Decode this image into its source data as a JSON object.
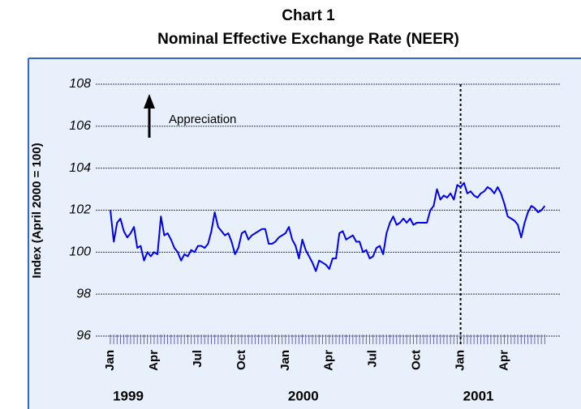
{
  "chart_data": {
    "type": "line",
    "title": "Chart 1",
    "subtitle": "Nominal Effective Exchange Rate (NEER)",
    "y_label": "Index (April 2000 = 100)",
    "annotation": "Appreciation",
    "year_labels": [
      "1999",
      "2000",
      "2001"
    ],
    "categories": [
      "Jan",
      null,
      null,
      null,
      null,
      null,
      null,
      null,
      null,
      null,
      null,
      null,
      null,
      "Apr",
      null,
      null,
      null,
      null,
      null,
      null,
      null,
      null,
      null,
      null,
      null,
      null,
      "Jul",
      null,
      null,
      null,
      null,
      null,
      null,
      null,
      null,
      null,
      null,
      null,
      null,
      "Oct",
      null,
      null,
      null,
      null,
      null,
      null,
      null,
      null,
      null,
      null,
      null,
      null,
      "Jan",
      null,
      null,
      null,
      null,
      null,
      null,
      null,
      null,
      null,
      null,
      null,
      null,
      "Apr",
      null,
      null,
      null,
      null,
      null,
      null,
      null,
      null,
      null,
      null,
      null,
      null,
      "Jul",
      null,
      null,
      null,
      null,
      null,
      null,
      null,
      null,
      null,
      null,
      null,
      null,
      "Oct",
      null,
      null,
      null,
      null,
      null,
      null,
      null,
      null,
      null,
      null,
      null,
      null,
      "Jan",
      null,
      null,
      null,
      null,
      null,
      null,
      null,
      null,
      null,
      null,
      null,
      null,
      "Apr",
      null,
      null,
      null,
      null,
      null,
      null,
      null,
      null,
      null,
      null,
      null,
      null
    ],
    "series": [
      {
        "name": "NEER",
        "color": "#0000ee",
        "values": [
          102.0,
          100.5,
          101.4,
          101.6,
          101.0,
          100.7,
          100.9,
          101.2,
          100.2,
          100.3,
          99.6,
          100.0,
          99.8,
          100.0,
          99.9,
          101.7,
          100.8,
          100.9,
          100.6,
          100.2,
          100.0,
          99.6,
          99.9,
          99.8,
          100.1,
          100.0,
          100.3,
          100.3,
          100.2,
          100.4,
          101.0,
          101.9,
          101.2,
          101.0,
          100.8,
          100.9,
          100.5,
          99.9,
          100.2,
          100.9,
          101.0,
          100.6,
          100.8,
          100.9,
          101.0,
          101.1,
          101.1,
          100.4,
          100.4,
          100.5,
          100.7,
          100.8,
          100.9,
          101.2,
          100.6,
          100.3,
          99.7,
          100.6,
          100.1,
          99.8,
          99.5,
          99.1,
          99.6,
          99.5,
          99.4,
          99.2,
          99.7,
          99.7,
          100.9,
          101.0,
          100.6,
          100.7,
          100.8,
          100.5,
          100.5,
          100.0,
          100.1,
          99.7,
          99.8,
          100.2,
          100.3,
          99.9,
          100.9,
          101.4,
          101.7,
          101.3,
          101.4,
          101.6,
          101.4,
          101.6,
          101.3,
          101.4,
          101.4,
          101.4,
          101.4,
          102.0,
          102.2,
          103.0,
          102.5,
          102.7,
          102.6,
          102.8,
          102.5,
          103.2,
          103.1,
          103.3,
          102.8,
          102.9,
          102.7,
          102.6,
          102.8,
          102.9,
          103.1,
          103.0,
          102.8,
          103.1,
          102.8,
          102.3,
          101.7,
          101.6,
          101.5,
          101.3,
          100.7,
          101.4,
          101.9,
          102.2,
          102.1,
          101.9,
          102.0,
          102.2
        ]
      }
    ],
    "ylim": [
      96,
      108
    ],
    "yticks": [
      96,
      98,
      100,
      102,
      104,
      106,
      108
    ],
    "grid": true
  }
}
